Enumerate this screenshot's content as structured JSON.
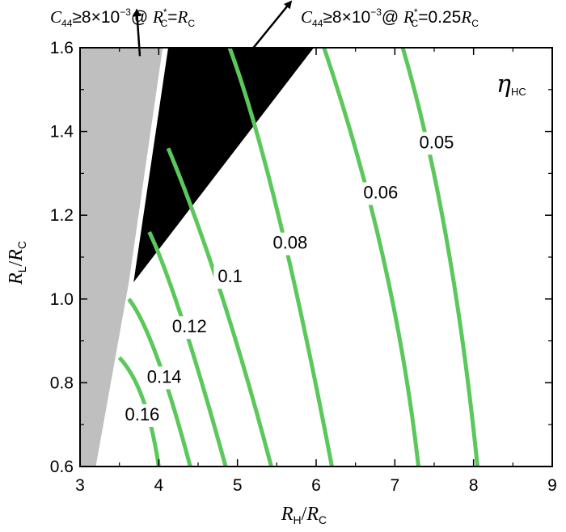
{
  "chart_data": {
    "type": "contour",
    "xlabel": {
      "main": "R",
      "sub": "H",
      "sep": "/",
      "den": "R",
      "den_sub": "C"
    },
    "ylabel": {
      "main": "R",
      "sub": "L",
      "sep": "/",
      "den": "R",
      "den_sub": "C"
    },
    "xlim": [
      3,
      9
    ],
    "ylim": [
      0.6,
      1.6
    ],
    "xticks": [
      "3",
      "4",
      "5",
      "6",
      "7",
      "8",
      "9"
    ],
    "yticks": [
      "0.6",
      "0.8",
      "1.0",
      "1.2",
      "1.4",
      "1.6"
    ],
    "panel_label": {
      "symbol": "η",
      "sub": "HC"
    },
    "contour_color": "#5bc85b",
    "contours": [
      {
        "level": "0.16",
        "points": [
          [
            3.5,
            0.86
          ],
          [
            3.8,
            0.76
          ],
          [
            4.0,
            0.6
          ]
        ],
        "label_at": [
          3.57,
          0.71
        ]
      },
      {
        "level": "0.14",
        "points": [
          [
            3.62,
            1.0
          ],
          [
            3.98,
            0.86
          ],
          [
            4.4,
            0.6
          ]
        ],
        "label_at": [
          3.85,
          0.8
        ]
      },
      {
        "level": "0.12",
        "points": [
          [
            3.88,
            1.16
          ],
          [
            4.3,
            0.95
          ],
          [
            4.85,
            0.6
          ]
        ],
        "label_at": [
          4.17,
          0.92
        ]
      },
      {
        "level": "0.1",
        "points": [
          [
            4.12,
            1.36
          ],
          [
            4.78,
            1.02
          ],
          [
            5.43,
            0.6
          ]
        ],
        "label_at": [
          4.75,
          1.04
        ]
      },
      {
        "level": "0.08",
        "points": [
          [
            4.9,
            1.6
          ],
          [
            5.52,
            1.2
          ],
          [
            6.2,
            0.6
          ]
        ],
        "label_at": [
          5.45,
          1.12
        ]
      },
      {
        "level": "0.06",
        "points": [
          [
            6.1,
            1.6
          ],
          [
            6.85,
            1.1
          ],
          [
            7.3,
            0.6
          ]
        ],
        "label_at": [
          6.6,
          1.24
        ]
      },
      {
        "level": "0.05",
        "points": [
          [
            7.1,
            1.6
          ],
          [
            7.65,
            1.15
          ],
          [
            8.05,
            0.6
          ]
        ],
        "label_at": [
          7.31,
          1.36
        ]
      }
    ],
    "regions": [
      {
        "name": "C44 ≥ 8×10⁻³ @ R*C = RC",
        "color": "#bfbfbf",
        "points": [
          [
            3.0,
            1.6
          ],
          [
            4.05,
            1.6
          ],
          [
            3.62,
            1.04
          ],
          [
            3.2,
            0.6
          ],
          [
            3.0,
            0.6
          ]
        ]
      },
      {
        "name": "C44 ≥ 8×10⁻³ @ R*C = 0.25RC",
        "color": "#000000",
        "points": [
          [
            4.12,
            1.6
          ],
          [
            5.97,
            1.6
          ],
          [
            3.68,
            1.04
          ]
        ]
      }
    ],
    "annotations": [
      {
        "id": "left",
        "c": "C",
        "c_sub": "44",
        "cond": "≥8×10",
        "exp": "−3",
        "at": "@ ",
        "r": "R",
        "r_sub": "C",
        "r_sup": "*",
        "eq": "=",
        "rhs_coef": "",
        "rhs": "R",
        "rhs_sub": "C",
        "arrow_from": [
          3.76,
          1.58
        ],
        "arrow_to": [
          3.72,
          1.69
        ]
      },
      {
        "id": "right",
        "c": "C",
        "c_sub": "44",
        "cond": "≥8×10",
        "exp": "−3",
        "at": "@ ",
        "r": "R",
        "r_sub": "C",
        "r_sup": "*",
        "eq": "=",
        "rhs_coef": "0.25",
        "rhs": "R",
        "rhs_sub": "C",
        "arrow_from": [
          5.03,
          1.56
        ],
        "arrow_to": [
          5.68,
          1.71
        ]
      }
    ]
  }
}
